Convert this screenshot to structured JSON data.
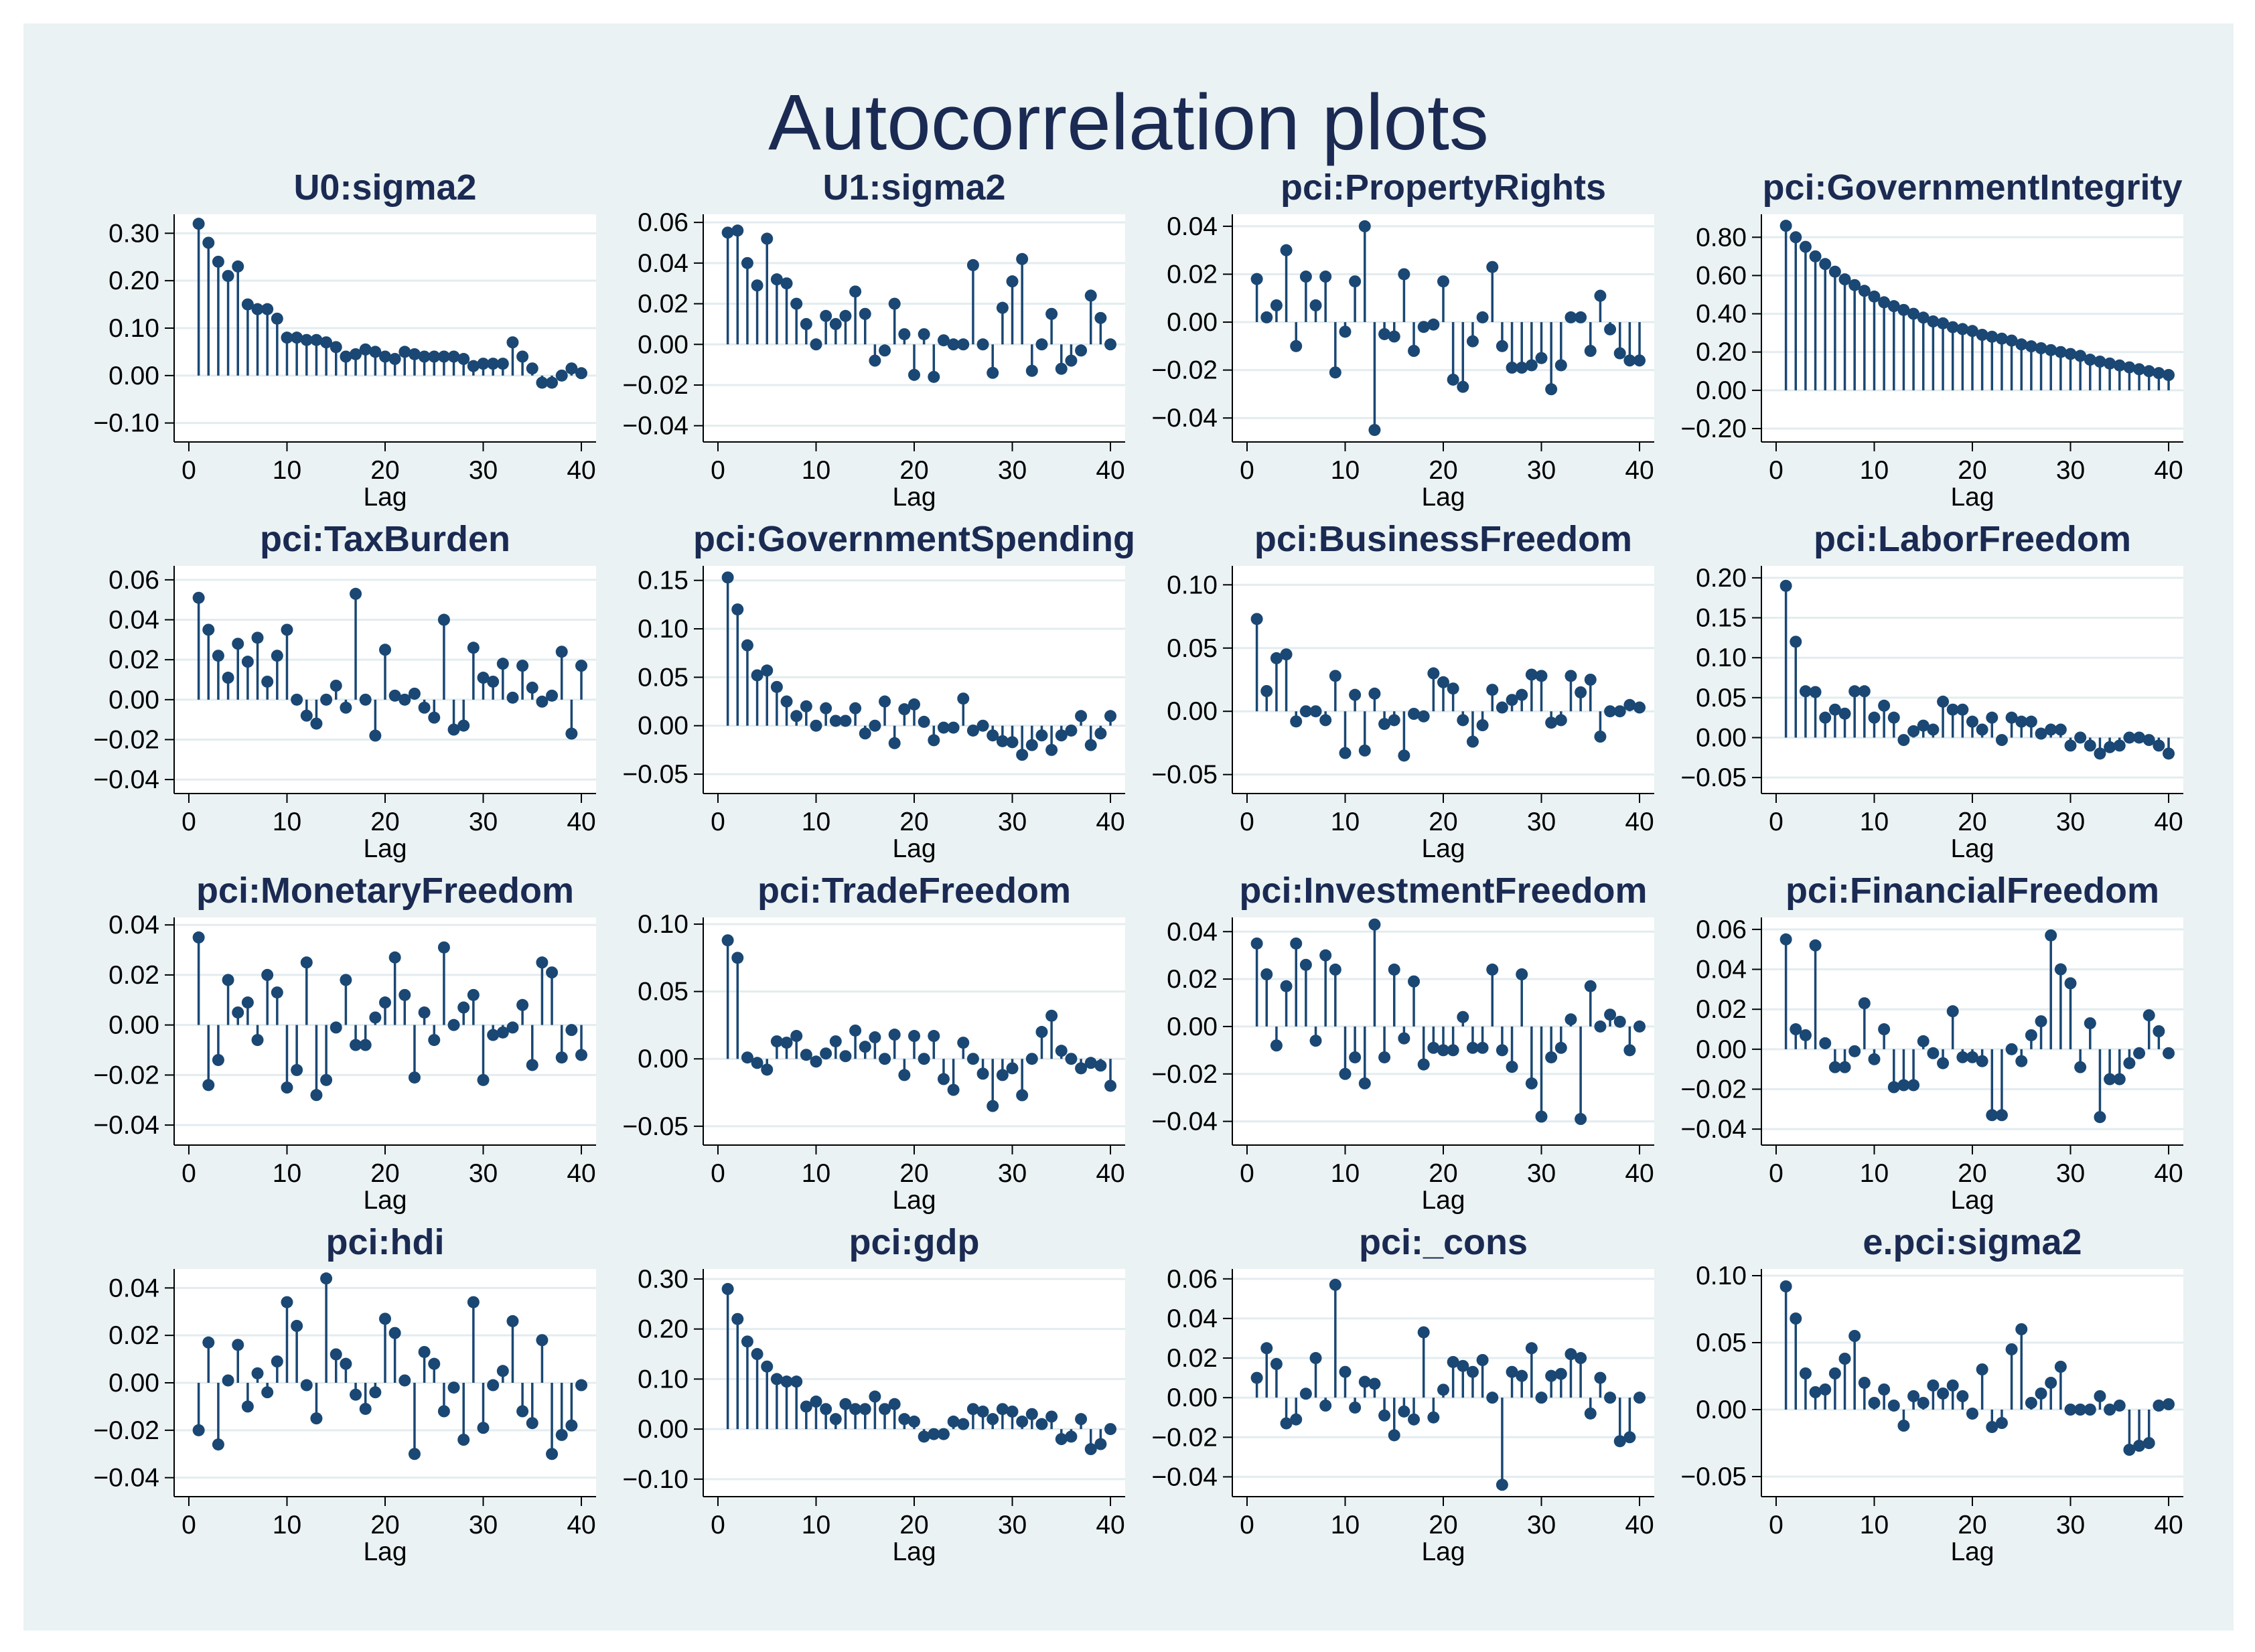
{
  "title": "Autocorrelation plots",
  "colors": {
    "background": "#eaf2f3",
    "plot": "#ffffff",
    "stem": "#1a4773",
    "grid": "#e3ecef",
    "title": "#1a2a52"
  },
  "chart_data": [
    {
      "type": "stem",
      "title": "U0:sigma2",
      "xlabel": "Lag",
      "xticks": [
        0,
        10,
        20,
        30,
        40
      ],
      "xlim": [
        -1.5,
        41.5
      ],
      "ylim": [
        -0.14,
        0.34
      ],
      "yticks": [
        -0.1,
        0.0,
        0.1,
        0.2,
        0.3
      ],
      "ytick_labels": [
        "−0.10",
        "0.00",
        "0.10",
        "0.20",
        "0.30"
      ],
      "values": [
        0.32,
        0.28,
        0.24,
        0.21,
        0.23,
        0.15,
        0.14,
        0.14,
        0.12,
        0.08,
        0.08,
        0.075,
        0.075,
        0.07,
        0.06,
        0.04,
        0.045,
        0.055,
        0.05,
        0.04,
        0.035,
        0.05,
        0.045,
        0.04,
        0.04,
        0.04,
        0.04,
        0.035,
        0.02,
        0.025,
        0.025,
        0.025,
        0.07,
        0.04,
        0.015,
        -0.015,
        -0.015,
        0.0,
        0.015,
        0.005
      ]
    },
    {
      "type": "stem",
      "title": "U1:sigma2",
      "xlabel": "Lag",
      "xticks": [
        0,
        10,
        20,
        30,
        40
      ],
      "xlim": [
        -1.5,
        41.5
      ],
      "ylim": [
        -0.048,
        0.064
      ],
      "yticks": [
        -0.04,
        -0.02,
        0.0,
        0.02,
        0.04,
        0.06
      ],
      "ytick_labels": [
        "−0.04",
        "−0.02",
        "0.00",
        "0.02",
        "0.04",
        "0.06"
      ],
      "values": [
        0.055,
        0.056,
        0.04,
        0.029,
        0.052,
        0.032,
        0.03,
        0.02,
        0.01,
        0.0,
        0.014,
        0.01,
        0.014,
        0.026,
        0.015,
        -0.008,
        -0.003,
        0.02,
        0.005,
        -0.015,
        0.005,
        -0.016,
        0.002,
        0.0,
        0.0,
        0.039,
        0.0,
        -0.014,
        0.018,
        0.031,
        0.042,
        -0.013,
        0.0,
        0.015,
        -0.012,
        -0.008,
        -0.003,
        0.024,
        0.013,
        0.0
      ]
    },
    {
      "type": "stem",
      "title": "pci:PropertyRights",
      "xlabel": "Lag",
      "xticks": [
        0,
        10,
        20,
        30,
        40
      ],
      "xlim": [
        -1.5,
        41.5
      ],
      "ylim": [
        -0.05,
        0.045
      ],
      "yticks": [
        -0.04,
        -0.02,
        0.0,
        0.02,
        0.04
      ],
      "ytick_labels": [
        "−0.04",
        "−0.02",
        "0.00",
        "0.02",
        "0.04"
      ],
      "values": [
        0.018,
        0.002,
        0.007,
        0.03,
        -0.01,
        0.019,
        0.007,
        0.019,
        -0.021,
        -0.004,
        0.017,
        0.04,
        -0.045,
        -0.005,
        -0.006,
        0.02,
        -0.012,
        -0.002,
        -0.001,
        0.017,
        -0.024,
        -0.027,
        -0.008,
        0.002,
        0.023,
        -0.01,
        -0.019,
        -0.019,
        -0.018,
        -0.015,
        -0.028,
        -0.018,
        0.002,
        0.002,
        -0.012,
        0.011,
        -0.003,
        -0.013,
        -0.016,
        -0.016
      ]
    },
    {
      "type": "stem",
      "title": "pci:GovernmentIntegrity",
      "xlabel": "Lag",
      "xticks": [
        0,
        10,
        20,
        30,
        40
      ],
      "xlim": [
        -1.5,
        41.5
      ],
      "ylim": [
        -0.27,
        0.92
      ],
      "yticks": [
        -0.2,
        0.0,
        0.2,
        0.4,
        0.6,
        0.8
      ],
      "ytick_labels": [
        "−0.20",
        "0.00",
        "0.20",
        "0.40",
        "0.60",
        "0.80"
      ],
      "values": [
        0.86,
        0.8,
        0.75,
        0.7,
        0.66,
        0.62,
        0.58,
        0.55,
        0.52,
        0.49,
        0.46,
        0.44,
        0.42,
        0.4,
        0.38,
        0.36,
        0.35,
        0.33,
        0.32,
        0.31,
        0.29,
        0.28,
        0.27,
        0.26,
        0.24,
        0.23,
        0.22,
        0.21,
        0.2,
        0.19,
        0.18,
        0.16,
        0.15,
        0.14,
        0.13,
        0.12,
        0.11,
        0.1,
        0.09,
        0.08
      ]
    },
    {
      "type": "stem",
      "title": "pci:TaxBurden",
      "xlabel": "Lag",
      "xticks": [
        0,
        10,
        20,
        30,
        40
      ],
      "xlim": [
        -1.5,
        41.5
      ],
      "ylim": [
        -0.047,
        0.067
      ],
      "yticks": [
        -0.04,
        -0.02,
        0.0,
        0.02,
        0.04,
        0.06
      ],
      "ytick_labels": [
        "−0.04",
        "−0.02",
        "0.00",
        "0.02",
        "0.04",
        "0.06"
      ],
      "values": [
        0.051,
        0.035,
        0.022,
        0.011,
        0.028,
        0.019,
        0.031,
        0.009,
        0.022,
        0.035,
        0.0,
        -0.008,
        -0.012,
        0.0,
        0.007,
        -0.004,
        0.053,
        0.0,
        -0.018,
        0.025,
        0.002,
        0.0,
        0.003,
        -0.004,
        -0.009,
        0.04,
        -0.015,
        -0.013,
        0.026,
        0.011,
        0.009,
        0.018,
        0.001,
        0.017,
        0.006,
        -0.001,
        0.002,
        0.024,
        -0.017,
        0.017
      ]
    },
    {
      "type": "stem",
      "title": "pci:GovernmentSpending",
      "xlabel": "Lag",
      "xticks": [
        0,
        10,
        20,
        30,
        40
      ],
      "xlim": [
        -1.5,
        41.5
      ],
      "ylim": [
        -0.07,
        0.165
      ],
      "yticks": [
        -0.05,
        0.0,
        0.05,
        0.1,
        0.15
      ],
      "ytick_labels": [
        "−0.05",
        "0.00",
        "0.05",
        "0.10",
        "0.15"
      ],
      "values": [
        0.153,
        0.12,
        0.083,
        0.052,
        0.057,
        0.04,
        0.025,
        0.01,
        0.02,
        0.0,
        0.018,
        0.005,
        0.005,
        0.018,
        -0.008,
        0.0,
        0.025,
        -0.018,
        0.017,
        0.022,
        0.004,
        -0.015,
        -0.002,
        -0.002,
        0.028,
        -0.005,
        0.0,
        -0.01,
        -0.016,
        -0.017,
        -0.03,
        -0.02,
        -0.01,
        -0.025,
        -0.01,
        -0.005,
        0.01,
        -0.02,
        -0.008,
        0.01
      ]
    },
    {
      "type": "stem",
      "title": "pci:BusinessFreedom",
      "xlabel": "Lag",
      "xticks": [
        0,
        10,
        20,
        30,
        40
      ],
      "xlim": [
        -1.5,
        41.5
      ],
      "ylim": [
        -0.065,
        0.115
      ],
      "yticks": [
        -0.05,
        0.0,
        0.05,
        0.1
      ],
      "ytick_labels": [
        "−0.05",
        "0.00",
        "0.05",
        "0.10"
      ],
      "values": [
        0.073,
        0.016,
        0.042,
        0.045,
        -0.008,
        0.0,
        0.0,
        -0.007,
        0.028,
        -0.033,
        0.013,
        -0.031,
        0.014,
        -0.01,
        -0.007,
        -0.035,
        -0.002,
        -0.004,
        0.03,
        0.023,
        0.018,
        -0.007,
        -0.024,
        -0.011,
        0.017,
        0.003,
        0.009,
        0.013,
        0.029,
        0.028,
        -0.009,
        -0.007,
        0.028,
        0.015,
        0.025,
        -0.02,
        0.0,
        0.0,
        0.005,
        0.003
      ]
    },
    {
      "type": "stem",
      "title": "pci:LaborFreedom",
      "xlabel": "Lag",
      "xticks": [
        0,
        10,
        20,
        30,
        40
      ],
      "xlim": [
        -1.5,
        41.5
      ],
      "ylim": [
        -0.07,
        0.215
      ],
      "yticks": [
        -0.05,
        0.0,
        0.05,
        0.1,
        0.15,
        0.2
      ],
      "ytick_labels": [
        "−0.05",
        "0.00",
        "0.05",
        "0.10",
        "0.15",
        "0.20"
      ],
      "values": [
        0.19,
        0.12,
        0.058,
        0.057,
        0.025,
        0.035,
        0.03,
        0.058,
        0.058,
        0.025,
        0.04,
        0.025,
        -0.003,
        0.008,
        0.015,
        0.01,
        0.045,
        0.035,
        0.035,
        0.02,
        0.01,
        0.025,
        -0.003,
        0.025,
        0.02,
        0.02,
        0.005,
        0.01,
        0.01,
        -0.01,
        0.0,
        -0.01,
        -0.02,
        -0.012,
        -0.01,
        0.0,
        0.0,
        -0.003,
        -0.01,
        -0.02
      ]
    },
    {
      "type": "stem",
      "title": "pci:MonetaryFreedom",
      "xlabel": "Lag",
      "xticks": [
        0,
        10,
        20,
        30,
        40
      ],
      "xlim": [
        -1.5,
        41.5
      ],
      "ylim": [
        -0.048,
        0.043
      ],
      "yticks": [
        -0.04,
        -0.02,
        0.0,
        0.02,
        0.04
      ],
      "ytick_labels": [
        "−0.04",
        "−0.02",
        "0.00",
        "0.02",
        "0.04"
      ],
      "values": [
        0.035,
        -0.024,
        -0.014,
        0.018,
        0.005,
        0.009,
        -0.006,
        0.02,
        0.013,
        -0.025,
        -0.018,
        0.025,
        -0.028,
        -0.022,
        -0.001,
        0.018,
        -0.008,
        -0.008,
        0.003,
        0.009,
        0.027,
        0.012,
        -0.021,
        0.005,
        -0.006,
        0.031,
        0.0,
        0.007,
        0.012,
        -0.022,
        -0.004,
        -0.003,
        -0.001,
        0.008,
        -0.016,
        0.025,
        0.021,
        -0.013,
        -0.002,
        -0.012
      ]
    },
    {
      "type": "stem",
      "title": "pci:TradeFreedom",
      "xlabel": "Lag",
      "xticks": [
        0,
        10,
        20,
        30,
        40
      ],
      "xlim": [
        -1.5,
        41.5
      ],
      "ylim": [
        -0.064,
        0.105
      ],
      "yticks": [
        -0.05,
        0.0,
        0.05,
        0.1
      ],
      "ytick_labels": [
        "−0.05",
        "0.00",
        "0.05",
        "0.10"
      ],
      "values": [
        0.088,
        0.075,
        0.001,
        -0.003,
        -0.008,
        0.013,
        0.012,
        0.017,
        0.003,
        -0.002,
        0.004,
        0.013,
        0.002,
        0.021,
        0.009,
        0.016,
        0.0,
        0.018,
        -0.012,
        0.017,
        0.0,
        0.017,
        -0.015,
        -0.023,
        0.012,
        0.0,
        -0.011,
        -0.035,
        -0.012,
        -0.007,
        -0.027,
        0.0,
        0.02,
        0.032,
        0.006,
        0.0,
        -0.007,
        -0.003,
        -0.005,
        -0.02
      ]
    },
    {
      "type": "stem",
      "title": "pci:InvestmentFreedom",
      "xlabel": "Lag",
      "xticks": [
        0,
        10,
        20,
        30,
        40
      ],
      "xlim": [
        -1.5,
        41.5
      ],
      "ylim": [
        -0.05,
        0.046
      ],
      "yticks": [
        -0.04,
        -0.02,
        0.0,
        0.02,
        0.04
      ],
      "ytick_labels": [
        "−0.04",
        "−0.02",
        "0.00",
        "0.02",
        "0.04"
      ],
      "values": [
        0.035,
        0.022,
        -0.008,
        0.017,
        0.035,
        0.026,
        -0.006,
        0.03,
        0.024,
        -0.02,
        -0.013,
        -0.024,
        0.043,
        -0.013,
        0.024,
        -0.005,
        0.019,
        -0.016,
        -0.009,
        -0.01,
        -0.01,
        0.004,
        -0.009,
        -0.009,
        0.024,
        -0.01,
        -0.017,
        0.022,
        -0.024,
        -0.038,
        -0.013,
        -0.009,
        0.003,
        -0.039,
        0.017,
        0.0,
        0.005,
        0.002,
        -0.01,
        0.0
      ]
    },
    {
      "type": "stem",
      "title": "pci:FinancialFreedom",
      "xlabel": "Lag",
      "xticks": [
        0,
        10,
        20,
        30,
        40
      ],
      "xlim": [
        -1.5,
        41.5
      ],
      "ylim": [
        -0.048,
        0.066
      ],
      "yticks": [
        -0.04,
        -0.02,
        0.0,
        0.02,
        0.04,
        0.06
      ],
      "ytick_labels": [
        "−0.04",
        "−0.02",
        "0.00",
        "0.02",
        "0.04",
        "0.06"
      ],
      "values": [
        0.055,
        0.01,
        0.007,
        0.052,
        0.003,
        -0.009,
        -0.009,
        -0.001,
        0.023,
        -0.005,
        0.01,
        -0.019,
        -0.018,
        -0.018,
        0.004,
        -0.002,
        -0.007,
        0.019,
        -0.004,
        -0.004,
        -0.006,
        -0.033,
        -0.033,
        0.0,
        -0.006,
        0.007,
        0.014,
        0.057,
        0.04,
        0.033,
        -0.009,
        0.013,
        -0.034,
        -0.015,
        -0.015,
        -0.007,
        -0.002,
        0.017,
        0.009,
        -0.002
      ]
    },
    {
      "type": "stem",
      "title": "pci:hdi",
      "xlabel": "Lag",
      "xticks": [
        0,
        10,
        20,
        30,
        40
      ],
      "xlim": [
        -1.5,
        41.5
      ],
      "ylim": [
        -0.048,
        0.048
      ],
      "yticks": [
        -0.04,
        -0.02,
        0.0,
        0.02,
        0.04
      ],
      "ytick_labels": [
        "−0.04",
        "−0.02",
        "0.00",
        "0.02",
        "0.04"
      ],
      "values": [
        -0.02,
        0.017,
        -0.026,
        0.001,
        0.016,
        -0.01,
        0.004,
        -0.004,
        0.009,
        0.034,
        0.024,
        -0.001,
        -0.015,
        0.044,
        0.012,
        0.008,
        -0.005,
        -0.011,
        -0.004,
        0.027,
        0.021,
        0.001,
        -0.03,
        0.013,
        0.008,
        -0.012,
        -0.002,
        -0.024,
        0.034,
        -0.019,
        -0.001,
        0.005,
        0.026,
        -0.012,
        -0.017,
        0.018,
        -0.03,
        -0.022,
        -0.018,
        -0.001
      ]
    },
    {
      "type": "stem",
      "title": "pci:gdp",
      "xlabel": "Lag",
      "xticks": [
        0,
        10,
        20,
        30,
        40
      ],
      "xlim": [
        -1.5,
        41.5
      ],
      "ylim": [
        -0.135,
        0.32
      ],
      "yticks": [
        -0.1,
        0.0,
        0.1,
        0.2,
        0.3
      ],
      "ytick_labels": [
        "−0.10",
        "0.00",
        "0.10",
        "0.20",
        "0.30"
      ],
      "values": [
        0.28,
        0.22,
        0.175,
        0.15,
        0.125,
        0.1,
        0.095,
        0.095,
        0.045,
        0.055,
        0.04,
        0.02,
        0.05,
        0.04,
        0.04,
        0.065,
        0.04,
        0.05,
        0.02,
        0.015,
        -0.015,
        -0.01,
        -0.01,
        0.015,
        0.01,
        0.04,
        0.035,
        0.02,
        0.04,
        0.035,
        0.015,
        0.03,
        0.01,
        0.025,
        -0.02,
        -0.015,
        0.02,
        -0.04,
        -0.03,
        0.0
      ]
    },
    {
      "type": "stem",
      "title": "pci:_cons",
      "xlabel": "Lag",
      "xticks": [
        0,
        10,
        20,
        30,
        40
      ],
      "xlim": [
        -1.5,
        41.5
      ],
      "ylim": [
        -0.05,
        0.065
      ],
      "yticks": [
        -0.04,
        -0.02,
        0.0,
        0.02,
        0.04,
        0.06
      ],
      "ytick_labels": [
        "−0.04",
        "−0.02",
        "0.00",
        "0.02",
        "0.04",
        "0.06"
      ],
      "values": [
        0.01,
        0.025,
        0.017,
        -0.013,
        -0.011,
        0.002,
        0.02,
        -0.004,
        0.057,
        0.013,
        -0.005,
        0.008,
        0.007,
        -0.009,
        -0.019,
        -0.007,
        -0.011,
        0.033,
        -0.01,
        0.004,
        0.018,
        0.016,
        0.013,
        0.019,
        0.0,
        -0.044,
        0.013,
        0.011,
        0.025,
        0.0,
        0.011,
        0.012,
        0.022,
        0.02,
        -0.008,
        0.01,
        0.0,
        -0.022,
        -0.02,
        0.0
      ]
    },
    {
      "type": "stem",
      "title": "e.pci:sigma2",
      "xlabel": "Lag",
      "xticks": [
        0,
        10,
        20,
        30,
        40
      ],
      "xlim": [
        -1.5,
        41.5
      ],
      "ylim": [
        -0.065,
        0.105
      ],
      "yticks": [
        -0.05,
        0.0,
        0.05,
        0.1
      ],
      "ytick_labels": [
        "−0.05",
        "0.00",
        "0.05",
        "0.10"
      ],
      "values": [
        0.092,
        0.068,
        0.027,
        0.013,
        0.015,
        0.027,
        0.038,
        0.055,
        0.02,
        0.005,
        0.015,
        0.003,
        -0.012,
        0.01,
        0.005,
        0.018,
        0.012,
        0.018,
        0.01,
        -0.003,
        0.03,
        -0.013,
        -0.01,
        0.045,
        0.06,
        0.005,
        0.012,
        0.02,
        0.032,
        0.0,
        0.0,
        0.0,
        0.01,
        0.0,
        0.003,
        -0.03,
        -0.027,
        -0.025,
        0.003,
        0.004
      ]
    }
  ]
}
